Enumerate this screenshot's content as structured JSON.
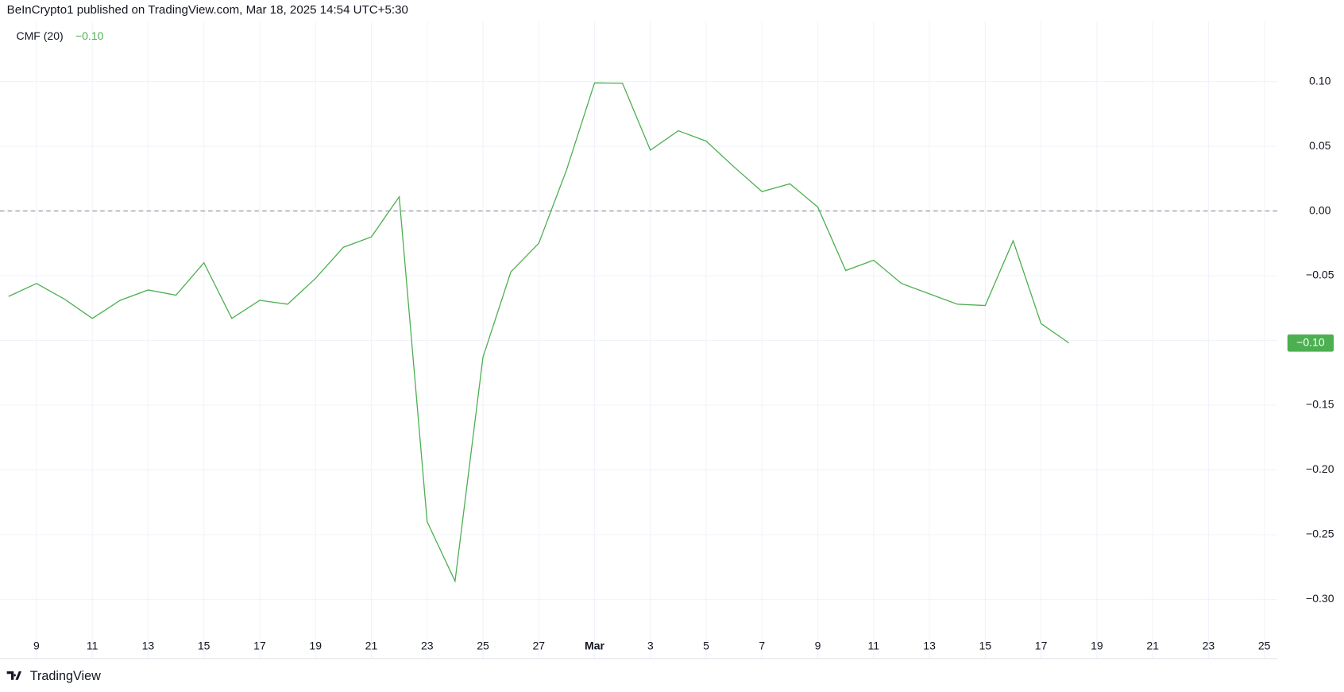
{
  "header": "BeInCrypto1 published on TradingView.com, Mar 18, 2025 14:54 UTC+5:30",
  "footer": "TradingView",
  "chart_data": {
    "type": "line",
    "categories": [
      null,
      "9",
      null,
      "11",
      null,
      "13",
      null,
      "15",
      null,
      "17",
      null,
      "19",
      null,
      "21",
      null,
      "23",
      null,
      "25",
      null,
      "27",
      null,
      "Mar",
      null,
      "3",
      null,
      "5",
      null,
      "7",
      null,
      "9",
      null,
      "11",
      null,
      "13",
      null,
      "15",
      null,
      "17",
      null,
      "19",
      null,
      "21",
      null,
      "23",
      null,
      "25"
    ],
    "series": [
      {
        "name": "CMF (20)",
        "color": "#4caf50",
        "values": [
          -0.066,
          -0.056,
          -0.068,
          -0.083,
          -0.069,
          -0.061,
          -0.065,
          -0.04,
          -0.083,
          -0.069,
          -0.072,
          -0.052,
          -0.028,
          -0.02,
          0.011,
          -0.24,
          -0.286,
          -0.113,
          -0.047,
          -0.025,
          0.032,
          0.099,
          0.0987,
          0.047,
          0.062,
          0.054,
          0.034,
          0.015,
          0.021,
          0.003,
          -0.046,
          -0.038,
          -0.056,
          -0.064,
          -0.072,
          -0.073,
          -0.023,
          -0.087,
          -0.102,
          null,
          null,
          null,
          null,
          null,
          null,
          null
        ],
        "value_labels": [
          null,
          null,
          null,
          null,
          null,
          null,
          null,
          null,
          null,
          null,
          null,
          null,
          null,
          null,
          null,
          null,
          null,
          null,
          null,
          null,
          null,
          null,
          null,
          null,
          null,
          null,
          null,
          null,
          null,
          null,
          null,
          null,
          null,
          null,
          null,
          null,
          null,
          null,
          "−0.10",
          null,
          null,
          null,
          null,
          null,
          null,
          null
        ]
      }
    ],
    "ylim": [
      -0.3457,
      0.1464
    ],
    "yticks": [
      {
        "value": 0.1,
        "label": "0.10"
      },
      {
        "value": 0.05,
        "label": "0.05"
      },
      {
        "value": 0,
        "label": "0.00"
      },
      {
        "value": -0.05,
        "label": "−0.05"
      },
      {
        "value": -0.1,
        "label": "−0.10"
      },
      {
        "value": -0.15,
        "label": "−0.15"
      },
      {
        "value": -0.2,
        "label": "−0.20"
      },
      {
        "value": -0.25,
        "label": "−0.25"
      },
      {
        "value": -0.3,
        "label": "−0.30"
      }
    ],
    "baseline": 0,
    "grid": true
  }
}
